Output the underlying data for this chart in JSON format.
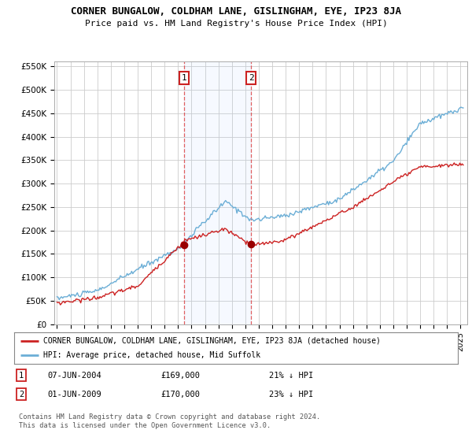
{
  "title": "CORNER BUNGALOW, COLDHAM LANE, GISLINGHAM, EYE, IP23 8JA",
  "subtitle": "Price paid vs. HM Land Registry's House Price Index (HPI)",
  "hpi_color": "#6baed6",
  "price_color": "#cc2222",
  "background": "#ffffff",
  "grid_color": "#cccccc",
  "ylim": [
    0,
    560000
  ],
  "yticks": [
    0,
    50000,
    100000,
    150000,
    200000,
    250000,
    300000,
    350000,
    400000,
    450000,
    500000,
    550000
  ],
  "ytick_labels": [
    "£0",
    "£50K",
    "£100K",
    "£150K",
    "£200K",
    "£250K",
    "£300K",
    "£350K",
    "£400K",
    "£450K",
    "£500K",
    "£550K"
  ],
  "sale1_date": 2004.44,
  "sale1_price": 169000,
  "sale2_date": 2009.42,
  "sale2_price": 170000,
  "legend_line1": "CORNER BUNGALOW, COLDHAM LANE, GISLINGHAM, EYE, IP23 8JA (detached house)",
  "legend_line2": "HPI: Average price, detached house, Mid Suffolk",
  "footer": "Contains HM Land Registry data © Crown copyright and database right 2024.\nThis data is licensed under the Open Government Licence v3.0."
}
